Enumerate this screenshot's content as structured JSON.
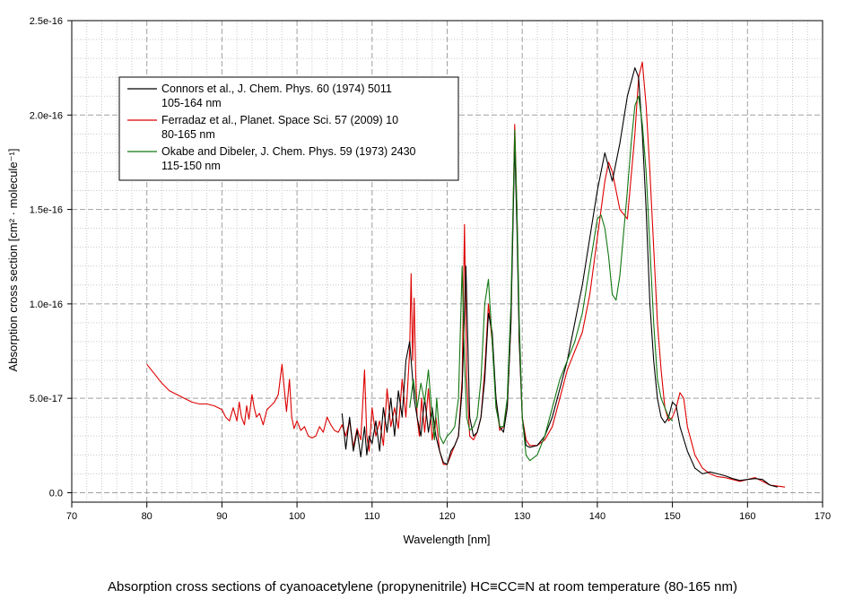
{
  "caption": "Absorption cross sections of cyanoacetylene (propynenitrile) HC≡CC≡N at room temperature (80-165 nm)",
  "chart_data": {
    "type": "line",
    "xlabel": "Wavelength [nm]",
    "ylabel": "Absorption cross section [cm² · molecule⁻¹]",
    "xlim": [
      70,
      170
    ],
    "ylim": [
      -5e-18,
      2.5e-16
    ],
    "xticks": [
      70,
      80,
      90,
      100,
      110,
      120,
      130,
      140,
      150,
      160,
      170
    ],
    "xtick_labels": [
      "70",
      "80",
      "90",
      "100",
      "110",
      "120",
      "130",
      "140",
      "150",
      "160",
      "170"
    ],
    "yticks": [
      0,
      5e-17,
      1e-16,
      1.5e-16,
      2e-16,
      2.5e-16
    ],
    "ytick_labels": [
      "0.0",
      "5.0e-17",
      "1.0e-16",
      "1.5e-16",
      "2.0e-16",
      "2.5e-16"
    ],
    "grid": true,
    "legend_position": "top-left",
    "series": [
      {
        "name": "Connors et al., J. Chem. Phys. 60 (1974) 5011",
        "range": "105-164 nm",
        "color": "#000000",
        "x": [
          106,
          106.5,
          107,
          107.5,
          108,
          108.5,
          109,
          109.3,
          109.6,
          110,
          110.5,
          111,
          111.5,
          112,
          112.5,
          113,
          113.5,
          114,
          114.5,
          115,
          115.3,
          115.6,
          116,
          116.5,
          117,
          117.5,
          118,
          118.5,
          119,
          119.5,
          120,
          120.5,
          121,
          121.5,
          122,
          122.5,
          123,
          123.5,
          124,
          124.5,
          125,
          125.5,
          126,
          126.5,
          127,
          127.5,
          128,
          128.5,
          129,
          129.3,
          129.6,
          130,
          130.5,
          131,
          132,
          133,
          134,
          135,
          136,
          137,
          138,
          139,
          140,
          141,
          142,
          143,
          144,
          145,
          145.5,
          146,
          146.5,
          147,
          147.5,
          148,
          148.5,
          149,
          149.5,
          150,
          150.5,
          151,
          152,
          153,
          154,
          155,
          156,
          157,
          158,
          159,
          160,
          161,
          162,
          163,
          164
        ],
        "values": [
          4.2e-17,
          2.3e-17,
          4e-17,
          2.2e-17,
          3.3e-17,
          1.9e-17,
          3.5e-17,
          2e-17,
          3e-17,
          2.6e-17,
          3.8e-17,
          2.2e-17,
          4.5e-17,
          3.2e-17,
          5e-17,
          3e-17,
          5.4e-17,
          4e-17,
          7e-17,
          8e-17,
          6.5e-17,
          5e-17,
          4e-17,
          3e-17,
          5e-17,
          3.2e-17,
          4.5e-17,
          3e-17,
          2.2e-17,
          1.6e-17,
          1.5e-17,
          2.2e-17,
          2.5e-17,
          3e-17,
          5.5e-17,
          1.2e-16,
          4e-17,
          3e-17,
          3.2e-17,
          4e-17,
          6e-17,
          9.5e-17,
          8.5e-17,
          5e-17,
          3.5e-17,
          3.2e-17,
          4.5e-17,
          9e-17,
          1.85e-16,
          1.4e-16,
          8e-17,
          4e-17,
          2.5e-17,
          2.4e-17,
          2.5e-17,
          3e-17,
          4e-17,
          5.5e-17,
          7e-17,
          9e-17,
          1.1e-16,
          1.35e-16,
          1.6e-16,
          1.8e-16,
          1.65e-16,
          1.85e-16,
          2.1e-16,
          2.25e-16,
          2.2e-16,
          1.9e-16,
          1.5e-16,
          1e-16,
          7e-17,
          5e-17,
          4e-17,
          3.7e-17,
          4e-17,
          4.8e-17,
          4.6e-17,
          3.5e-17,
          2.2e-17,
          1.3e-17,
          1e-17,
          1.1e-17,
          1e-17,
          9e-18,
          7.5e-18,
          6.5e-18,
          7e-18,
          7.5e-18,
          7e-18,
          4e-18,
          3e-18
        ]
      },
      {
        "name": "Ferradaz et al., Planet. Space Sci. 57 (2009) 10",
        "range": "80-165 nm",
        "color": "#dd0000",
        "x": [
          80,
          81,
          82,
          83,
          84,
          85,
          86,
          87,
          88,
          89,
          90,
          90.5,
          91,
          91.5,
          92,
          92.3,
          92.6,
          93,
          93.3,
          93.6,
          94,
          94.3,
          94.6,
          95,
          95.5,
          96,
          96.5,
          97,
          97.5,
          98,
          98.3,
          98.6,
          99,
          99.3,
          99.6,
          100,
          100.5,
          101,
          101.5,
          102,
          102.5,
          103,
          103.5,
          104,
          104.5,
          105,
          105.5,
          106,
          106.5,
          107,
          107.5,
          108,
          108.5,
          109,
          109.3,
          109.6,
          110,
          110.5,
          111,
          111.5,
          112,
          112.5,
          113,
          113.5,
          114,
          114.5,
          115,
          115.2,
          115.4,
          115.6,
          115.8,
          116,
          116.3,
          116.6,
          117,
          117.5,
          118,
          118.5,
          119,
          119.5,
          120,
          120.5,
          121,
          121.5,
          122,
          122.3,
          122.6,
          123,
          123.5,
          124,
          124.5,
          125,
          125.5,
          126,
          126.5,
          127,
          127.5,
          128,
          128.5,
          129,
          129.3,
          129.6,
          130,
          130.5,
          131,
          132,
          133,
          134,
          135,
          136,
          137,
          138,
          139,
          140,
          141,
          141.5,
          142,
          143,
          144,
          145,
          145.5,
          146,
          146.5,
          147,
          147.5,
          148,
          148.5,
          149,
          149.5,
          150,
          150.5,
          151,
          151.5,
          152,
          153,
          154,
          155,
          156,
          157,
          158,
          159,
          160,
          161,
          162,
          163,
          164,
          165
        ],
        "values": [
          6.8e-17,
          6.3e-17,
          5.8e-17,
          5.4e-17,
          5.2e-17,
          5e-17,
          4.8e-17,
          4.7e-17,
          4.7e-17,
          4.6e-17,
          4.4e-17,
          4e-17,
          3.8e-17,
          4.5e-17,
          3.8e-17,
          4.8e-17,
          4e-17,
          3.6e-17,
          4.6e-17,
          3.9e-17,
          5.2e-17,
          4.5e-17,
          4e-17,
          4.2e-17,
          3.6e-17,
          4.4e-17,
          4.6e-17,
          4.8e-17,
          5.2e-17,
          6.8e-17,
          5.5e-17,
          4.3e-17,
          6e-17,
          4e-17,
          3.4e-17,
          3.8e-17,
          3.3e-17,
          3.5e-17,
          3e-17,
          2.9e-17,
          3e-17,
          3.5e-17,
          3.2e-17,
          4e-17,
          3.6e-17,
          3.3e-17,
          3.2e-17,
          3.6e-17,
          3e-17,
          3.8e-17,
          2.4e-17,
          3.4e-17,
          2.8e-17,
          6.5e-17,
          3e-17,
          2.2e-17,
          4.5e-17,
          3e-17,
          3.8e-17,
          2.5e-17,
          5.5e-17,
          3.5e-17,
          4.5e-17,
          3.4e-17,
          6e-17,
          4e-17,
          7.5e-17,
          1.16e-16,
          7e-17,
          1.03e-16,
          6.5e-17,
          4e-17,
          3e-17,
          5e-17,
          3.2e-17,
          5.5e-17,
          2.8e-17,
          4e-17,
          2.2e-17,
          1.5e-17,
          1.5e-17,
          2e-17,
          2.5e-17,
          3e-17,
          6e-17,
          1.42e-16,
          6e-17,
          3e-17,
          2.8e-17,
          3.2e-17,
          4e-17,
          6.5e-17,
          1e-16,
          8e-17,
          5e-17,
          3.3e-17,
          3.5e-17,
          4.5e-17,
          9e-17,
          1.95e-16,
          1.5e-16,
          8e-17,
          4e-17,
          2.8e-17,
          2.5e-17,
          2.5e-17,
          2.8e-17,
          3.5e-17,
          5e-17,
          6.5e-17,
          7.5e-17,
          8.5e-17,
          1.05e-16,
          1.35e-16,
          1.65e-16,
          1.75e-16,
          1.7e-16,
          1.5e-16,
          1.45e-16,
          1.9e-16,
          2.2e-16,
          2.28e-16,
          2.05e-16,
          1.7e-16,
          1.3e-16,
          9e-17,
          6.5e-17,
          4.5e-17,
          3.8e-17,
          4e-17,
          4.5e-17,
          5.3e-17,
          5e-17,
          3.5e-17,
          2e-17,
          1.3e-17,
          1e-17,
          8.5e-18,
          8e-18,
          7e-18,
          6e-18,
          7e-18,
          8e-18,
          6e-18,
          4e-18,
          3.5e-18,
          3e-18
        ]
      },
      {
        "name": "Okabe and Dibeler, J. Chem. Phys. 59 (1973) 2430",
        "range": "115-150 nm",
        "color": "#117711",
        "x": [
          115,
          115.5,
          116,
          116.5,
          117,
          117.5,
          118,
          118.3,
          118.6,
          119,
          119.5,
          120,
          120.5,
          121,
          121.5,
          122,
          122.3,
          122.6,
          123,
          123.5,
          124,
          124.5,
          125,
          125.5,
          126,
          126.5,
          127,
          127.5,
          128,
          128.5,
          129,
          129.3,
          129.6,
          130,
          130.5,
          131,
          132,
          133,
          134,
          135,
          136,
          137,
          138,
          139,
          140,
          140.5,
          141,
          141.5,
          142,
          142.5,
          143,
          144,
          144.5,
          145,
          145.5,
          146,
          146.5,
          147,
          147.5,
          148,
          148.5,
          149,
          149.5,
          150
        ],
        "values": [
          4.5e-17,
          6e-17,
          4.5e-17,
          5.8e-17,
          4.8e-17,
          6.5e-17,
          4e-17,
          2.8e-17,
          5e-17,
          3e-17,
          2.6e-17,
          3e-17,
          3.2e-17,
          3.5e-17,
          5e-17,
          1.2e-16,
          7e-17,
          4e-17,
          3.3e-17,
          3.5e-17,
          4e-17,
          6e-17,
          1e-16,
          1.13e-16,
          8e-17,
          4.5e-17,
          3.5e-17,
          3.5e-17,
          5e-17,
          1e-16,
          1.92e-16,
          1.5e-16,
          9e-17,
          4e-17,
          2e-17,
          1.7e-17,
          2e-17,
          3e-17,
          4.5e-17,
          6e-17,
          7e-17,
          8e-17,
          9.5e-17,
          1.2e-16,
          1.45e-16,
          1.47e-16,
          1.4e-16,
          1.25e-16,
          1.05e-16,
          1.02e-16,
          1.15e-16,
          1.6e-16,
          1.85e-16,
          2.05e-16,
          2.1e-16,
          1.95e-16,
          1.7e-16,
          1.3e-16,
          9e-17,
          6e-17,
          5e-17,
          4.5e-17,
          4e-17,
          3.8e-17
        ]
      }
    ]
  }
}
